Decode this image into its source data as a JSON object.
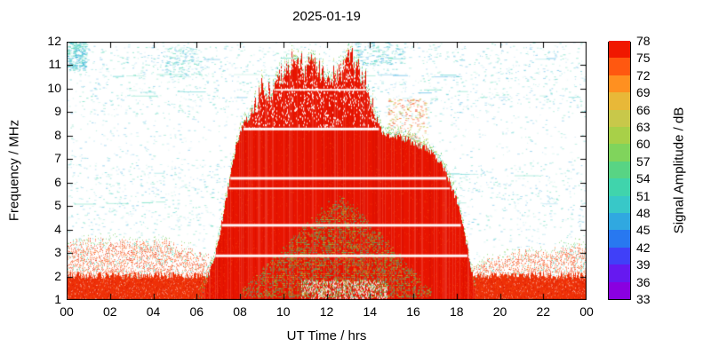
{
  "chart_data": {
    "type": "heatmap",
    "title": "2025-01-19",
    "xlabel": "UT Time / hrs",
    "ylabel": "Frequency / MHz",
    "colorbar_label": "Signal Amplitude / dB",
    "x_range": [
      0,
      24
    ],
    "y_range": [
      1,
      12
    ],
    "x_ticks": {
      "values": [
        0,
        2,
        4,
        6,
        8,
        10,
        12,
        14,
        16,
        18,
        20,
        22,
        24
      ],
      "labels": [
        "00",
        "02",
        "04",
        "06",
        "08",
        "10",
        "12",
        "14",
        "16",
        "18",
        "20",
        "22",
        "00"
      ]
    },
    "y_ticks": {
      "values": [
        1,
        2,
        3,
        4,
        5,
        6,
        7,
        8,
        9,
        10,
        11,
        12
      ],
      "labels": [
        "1",
        "2",
        "3",
        "4",
        "5",
        "6",
        "7",
        "8",
        "9",
        "10",
        "11",
        "12"
      ]
    },
    "colorbar": {
      "min": 33,
      "max": 78,
      "step": 3,
      "tick_labels": [
        "33",
        "36",
        "39",
        "42",
        "45",
        "48",
        "51",
        "54",
        "57",
        "60",
        "63",
        "66",
        "69",
        "72",
        "75",
        "78"
      ],
      "color_stops": [
        "#8a00e0",
        "#6619f0",
        "#4040f8",
        "#2878f0",
        "#30a8e0",
        "#38c8c8",
        "#40d4ac",
        "#58d484",
        "#80d45c",
        "#a8d048",
        "#c8c84a",
        "#e8b838",
        "#ff9020",
        "#ff5810",
        "#f01800",
        "#e80000"
      ]
    },
    "palette": {
      "background": "#ffffff",
      "blob_red": "#e81400",
      "band_red": "#ee3008",
      "deep_red": "#c81000",
      "orange": "#ff7020",
      "orange2": "#ff6018",
      "speckle_teal": "#38c8c8",
      "speckle_cyan": "#30a8e0",
      "speckle_aqua": "#40d4ac",
      "fringe_green": "#58c838",
      "fringe_yellow": "#b8c838",
      "fringe_teal": "#2cc89c"
    },
    "series": {
      "daytime_fmax_envelope": {
        "hours": [
          6.2,
          6.6,
          7.0,
          7.4,
          7.8,
          8.2,
          8.6,
          9.0,
          9.4,
          9.8,
          10.2,
          10.6,
          11.0,
          11.4,
          11.8,
          12.2,
          12.6,
          13.0,
          13.4,
          13.8,
          14.2,
          14.6,
          15.0,
          15.5,
          16.0,
          16.5,
          17.0,
          17.5,
          18.0,
          18.4,
          18.8
        ],
        "f_mhz": [
          1.3,
          2.2,
          3.6,
          5.6,
          7.6,
          8.6,
          9.0,
          10.1,
          9.8,
          10.4,
          10.9,
          11.2,
          10.8,
          11.2,
          10.6,
          10.5,
          10.8,
          11.4,
          10.9,
          10.2,
          8.9,
          8.1,
          8.0,
          7.9,
          7.7,
          7.5,
          7.2,
          6.4,
          5.2,
          3.6,
          1.6
        ]
      },
      "night_band_top": {
        "hours": [
          0,
          1,
          2,
          3,
          4,
          5,
          6,
          7,
          18.6,
          19,
          20,
          21,
          22,
          23,
          24
        ],
        "f_mhz": [
          3.4,
          3.5,
          3.5,
          3.4,
          3.5,
          3.3,
          3.0,
          2.6,
          2.3,
          2.5,
          2.8,
          3.0,
          3.0,
          3.2,
          3.4
        ]
      },
      "inner_layer_top": {
        "hours": [
          8.0,
          9.0,
          10.0,
          11.0,
          12.0,
          12.6,
          13.2,
          14.0,
          15.0,
          16.0,
          16.8
        ],
        "f_mhz": [
          1.4,
          2.2,
          3.2,
          4.2,
          5.0,
          5.4,
          5.0,
          4.2,
          3.2,
          2.2,
          1.4
        ]
      },
      "gap_lines_f_mhz": [
        8.3,
        6.2,
        5.75,
        4.2,
        2.9,
        9.95
      ],
      "noise_bands_f_mhz": [
        [
          4.0,
          6.8
        ],
        [
          8.8,
          11.8
        ]
      ]
    }
  }
}
